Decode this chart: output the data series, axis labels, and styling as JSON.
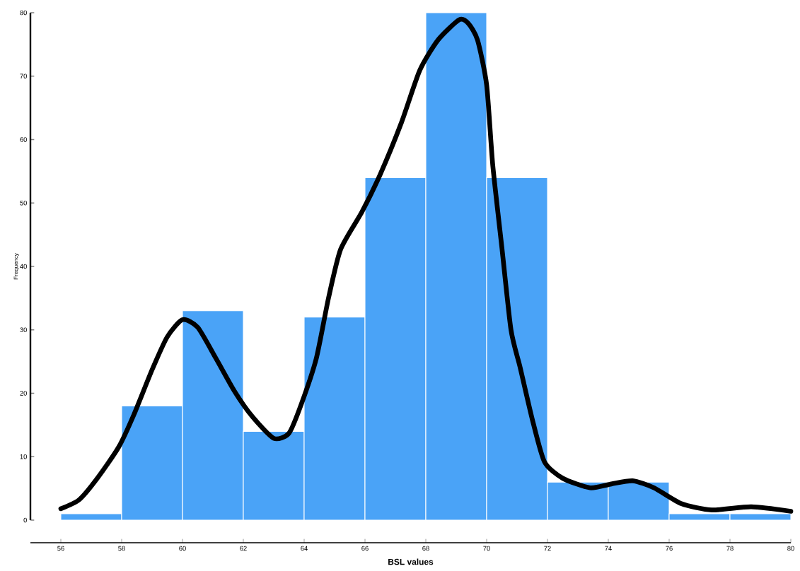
{
  "chart_data": {
    "type": "histogram",
    "xlabel": "BSL values",
    "ylabel": "Frequency",
    "xlim": [
      55,
      80
    ],
    "ylim": [
      0,
      80
    ],
    "xticks": [
      56,
      58,
      60,
      62,
      64,
      66,
      68,
      70,
      72,
      74,
      76,
      78,
      80
    ],
    "yticks": [
      0,
      10,
      20,
      30,
      40,
      50,
      60,
      70,
      80
    ],
    "series": [
      {
        "color": "#4aa3f7",
        "bins": [
          56,
          58,
          60,
          62,
          64,
          66,
          68,
          70,
          72,
          74,
          76,
          78,
          80
        ],
        "values": [
          1,
          18,
          33,
          14,
          32,
          54,
          80,
          54,
          6,
          6,
          1,
          1
        ]
      },
      {
        "type": "line",
        "color": "#000000",
        "x": [
          56,
          56.6,
          57.2,
          57.9,
          58.4,
          59.0,
          59.5,
          60.0,
          60.5,
          61.1,
          61.7,
          62.3,
          63.0,
          63.5,
          63.9,
          64.4,
          64.8,
          65.2,
          65.9,
          66.5,
          67.2,
          67.8,
          68.4,
          69.1,
          69.4,
          69.7,
          70.0,
          70.2,
          70.5,
          70.8,
          71.1,
          71.5,
          71.9,
          72.5,
          73.4,
          74.1,
          74.8,
          75.5,
          76.4,
          77.4,
          78.7,
          80.0
        ],
        "values": [
          1.8,
          3.2,
          6.6,
          11.5,
          16.6,
          23.7,
          28.9,
          31.6,
          30.4,
          25.5,
          20.4,
          16.3,
          12.9,
          13.7,
          18.2,
          25.5,
          35,
          42.7,
          48.6,
          54.5,
          62.7,
          70.9,
          75.7,
          78.9,
          78.3,
          75.7,
          68.6,
          56,
          43,
          30,
          24.1,
          15.9,
          9.2,
          6.6,
          5.1,
          5.7,
          6.2,
          5.1,
          2.6,
          1.6,
          2.1,
          1.4
        ]
      }
    ]
  }
}
